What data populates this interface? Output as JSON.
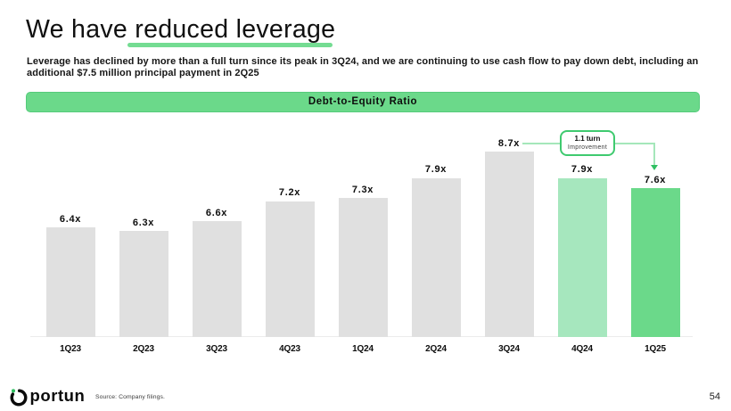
{
  "slide": {
    "title": {
      "prefix": "We have ",
      "highlighted": "reduced leverage"
    },
    "subtitle_lines": [
      "Leverage has declined by more than a full turn since its peak in 3Q24, and we are continuing to use cash flow to pay down debt, including an",
      "additional $7.5 million principal payment in 2Q25"
    ],
    "banner_label": "Debt-to-Equity Ratio",
    "footer": {
      "logo_text": "portun",
      "logo_name": "Oportun",
      "source_note": "Source: Company filings.",
      "page_number": "54"
    }
  },
  "colors": {
    "bar_gray": "#E0E0E0",
    "bar_light_green": "#A6E7BE",
    "bar_green": "#6BD98A",
    "banner_green": "#6BD98A",
    "underline_green": "#74DC92",
    "callout_border_green": "#3FCA6F",
    "connector_green": "#A5E7BA",
    "arrow_green": "#2FBF62",
    "logo_dot_green": "#2EBE5F"
  },
  "chart_data": {
    "type": "bar",
    "title": "Debt-to-Equity Ratio",
    "xlabel": "",
    "ylabel": "",
    "categories": [
      "1Q23",
      "2Q23",
      "3Q23",
      "4Q23",
      "1Q24",
      "2Q24",
      "3Q24",
      "4Q24",
      "1Q25"
    ],
    "values": [
      6.4,
      6.3,
      6.6,
      7.2,
      7.3,
      7.9,
      8.7,
      7.9,
      7.6
    ],
    "value_labels": [
      "6.4x",
      "6.3x",
      "6.6x",
      "7.2x",
      "7.3x",
      "7.9x",
      "8.7x",
      "7.9x",
      "7.6x"
    ],
    "bar_color_keys": [
      "bar_gray",
      "bar_gray",
      "bar_gray",
      "bar_gray",
      "bar_gray",
      "bar_gray",
      "bar_gray",
      "bar_light_green",
      "bar_green"
    ],
    "ylim": [
      3.09,
      9.6
    ],
    "grid": false,
    "legend": false,
    "annotation": {
      "line1": "1.1 turn",
      "line2": "Improvement",
      "from_category": "3Q24",
      "to_category": "1Q25"
    }
  }
}
